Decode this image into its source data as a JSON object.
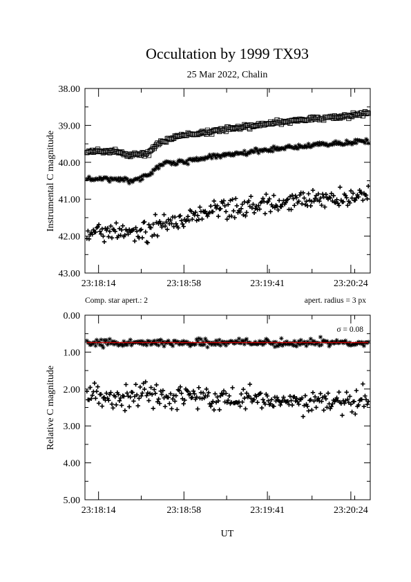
{
  "figure": {
    "title": "Occultation by 1999 TX93",
    "subtitle": "25 Mar 2022, Chalin",
    "xlabel": "UT",
    "x_tick_labels": [
      "23:18:14",
      "23:18:58",
      "23:19:41",
      "23:20:24"
    ],
    "note_left": "Comp. star apert.: 2",
    "note_right": "apert. radius = 3 px",
    "sigma_label": "σ = 0.08",
    "fit_line_color": "#cc0000"
  },
  "chart_data": [
    {
      "type": "scatter",
      "ylabel": "Instrumental C magnitude",
      "ylim": [
        38.0,
        43.0
      ],
      "y_inverted": true,
      "y_ticks": [
        "38.00",
        "39.00",
        "40.00",
        "41.00",
        "42.00",
        "43.00"
      ],
      "x_ticks": [
        "23:18:14",
        "23:18:58",
        "23:19:41",
        "23:20:24"
      ],
      "x_range": [
        "23:18:07",
        "23:20:34"
      ],
      "series": [
        {
          "marker": "square",
          "x": [
            "23:18:08",
            "23:18:22",
            "23:18:30",
            "23:18:40",
            "23:18:46",
            "23:18:58",
            "23:19:15",
            "23:19:41",
            "23:20:00",
            "23:20:24",
            "23:20:33"
          ],
          "y": [
            39.7,
            39.7,
            39.8,
            39.75,
            39.45,
            39.25,
            39.15,
            38.95,
            38.85,
            38.73,
            38.68
          ]
        },
        {
          "marker": "asterisk",
          "x": [
            "23:18:08",
            "23:18:22",
            "23:18:30",
            "23:18:40",
            "23:18:46",
            "23:18:58",
            "23:19:15",
            "23:19:41",
            "23:20:00",
            "23:20:24",
            "23:20:33"
          ],
          "y": [
            40.45,
            40.45,
            40.5,
            40.35,
            40.05,
            39.98,
            39.82,
            39.65,
            39.55,
            39.47,
            39.42
          ]
        },
        {
          "marker": "plus",
          "x": [
            "23:18:08",
            "23:18:22",
            "23:18:30",
            "23:18:40",
            "23:18:46",
            "23:18:58",
            "23:19:15",
            "23:19:41",
            "23:20:00",
            "23:20:24",
            "23:20:33"
          ],
          "y": [
            41.95,
            41.85,
            41.9,
            41.85,
            41.65,
            41.55,
            41.3,
            41.15,
            41.05,
            40.95,
            40.85
          ]
        }
      ]
    },
    {
      "type": "scatter",
      "ylabel": "Relative C magnitude",
      "ylim": [
        0.0,
        5.0
      ],
      "y_inverted": true,
      "y_ticks": [
        "0.00",
        "1.00",
        "2.00",
        "3.00",
        "4.00",
        "5.00"
      ],
      "x_ticks": [
        "23:18:14",
        "23:18:58",
        "23:19:41",
        "23:20:24"
      ],
      "x_range": [
        "23:18:07",
        "23:20:34"
      ],
      "series": [
        {
          "marker": "asterisk",
          "x": [
            "23:18:08",
            "23:18:58",
            "23:19:41",
            "23:20:24",
            "23:20:33"
          ],
          "y": [
            0.75,
            0.75,
            0.75,
            0.75,
            0.75
          ]
        },
        {
          "marker": "plus",
          "x": [
            "23:18:08",
            "23:18:58",
            "23:19:41",
            "23:20:24",
            "23:20:33"
          ],
          "y": [
            2.2,
            2.25,
            2.3,
            2.3,
            2.25
          ]
        }
      ],
      "fit_line": {
        "y": 0.74,
        "sigma": 0.08
      }
    }
  ]
}
